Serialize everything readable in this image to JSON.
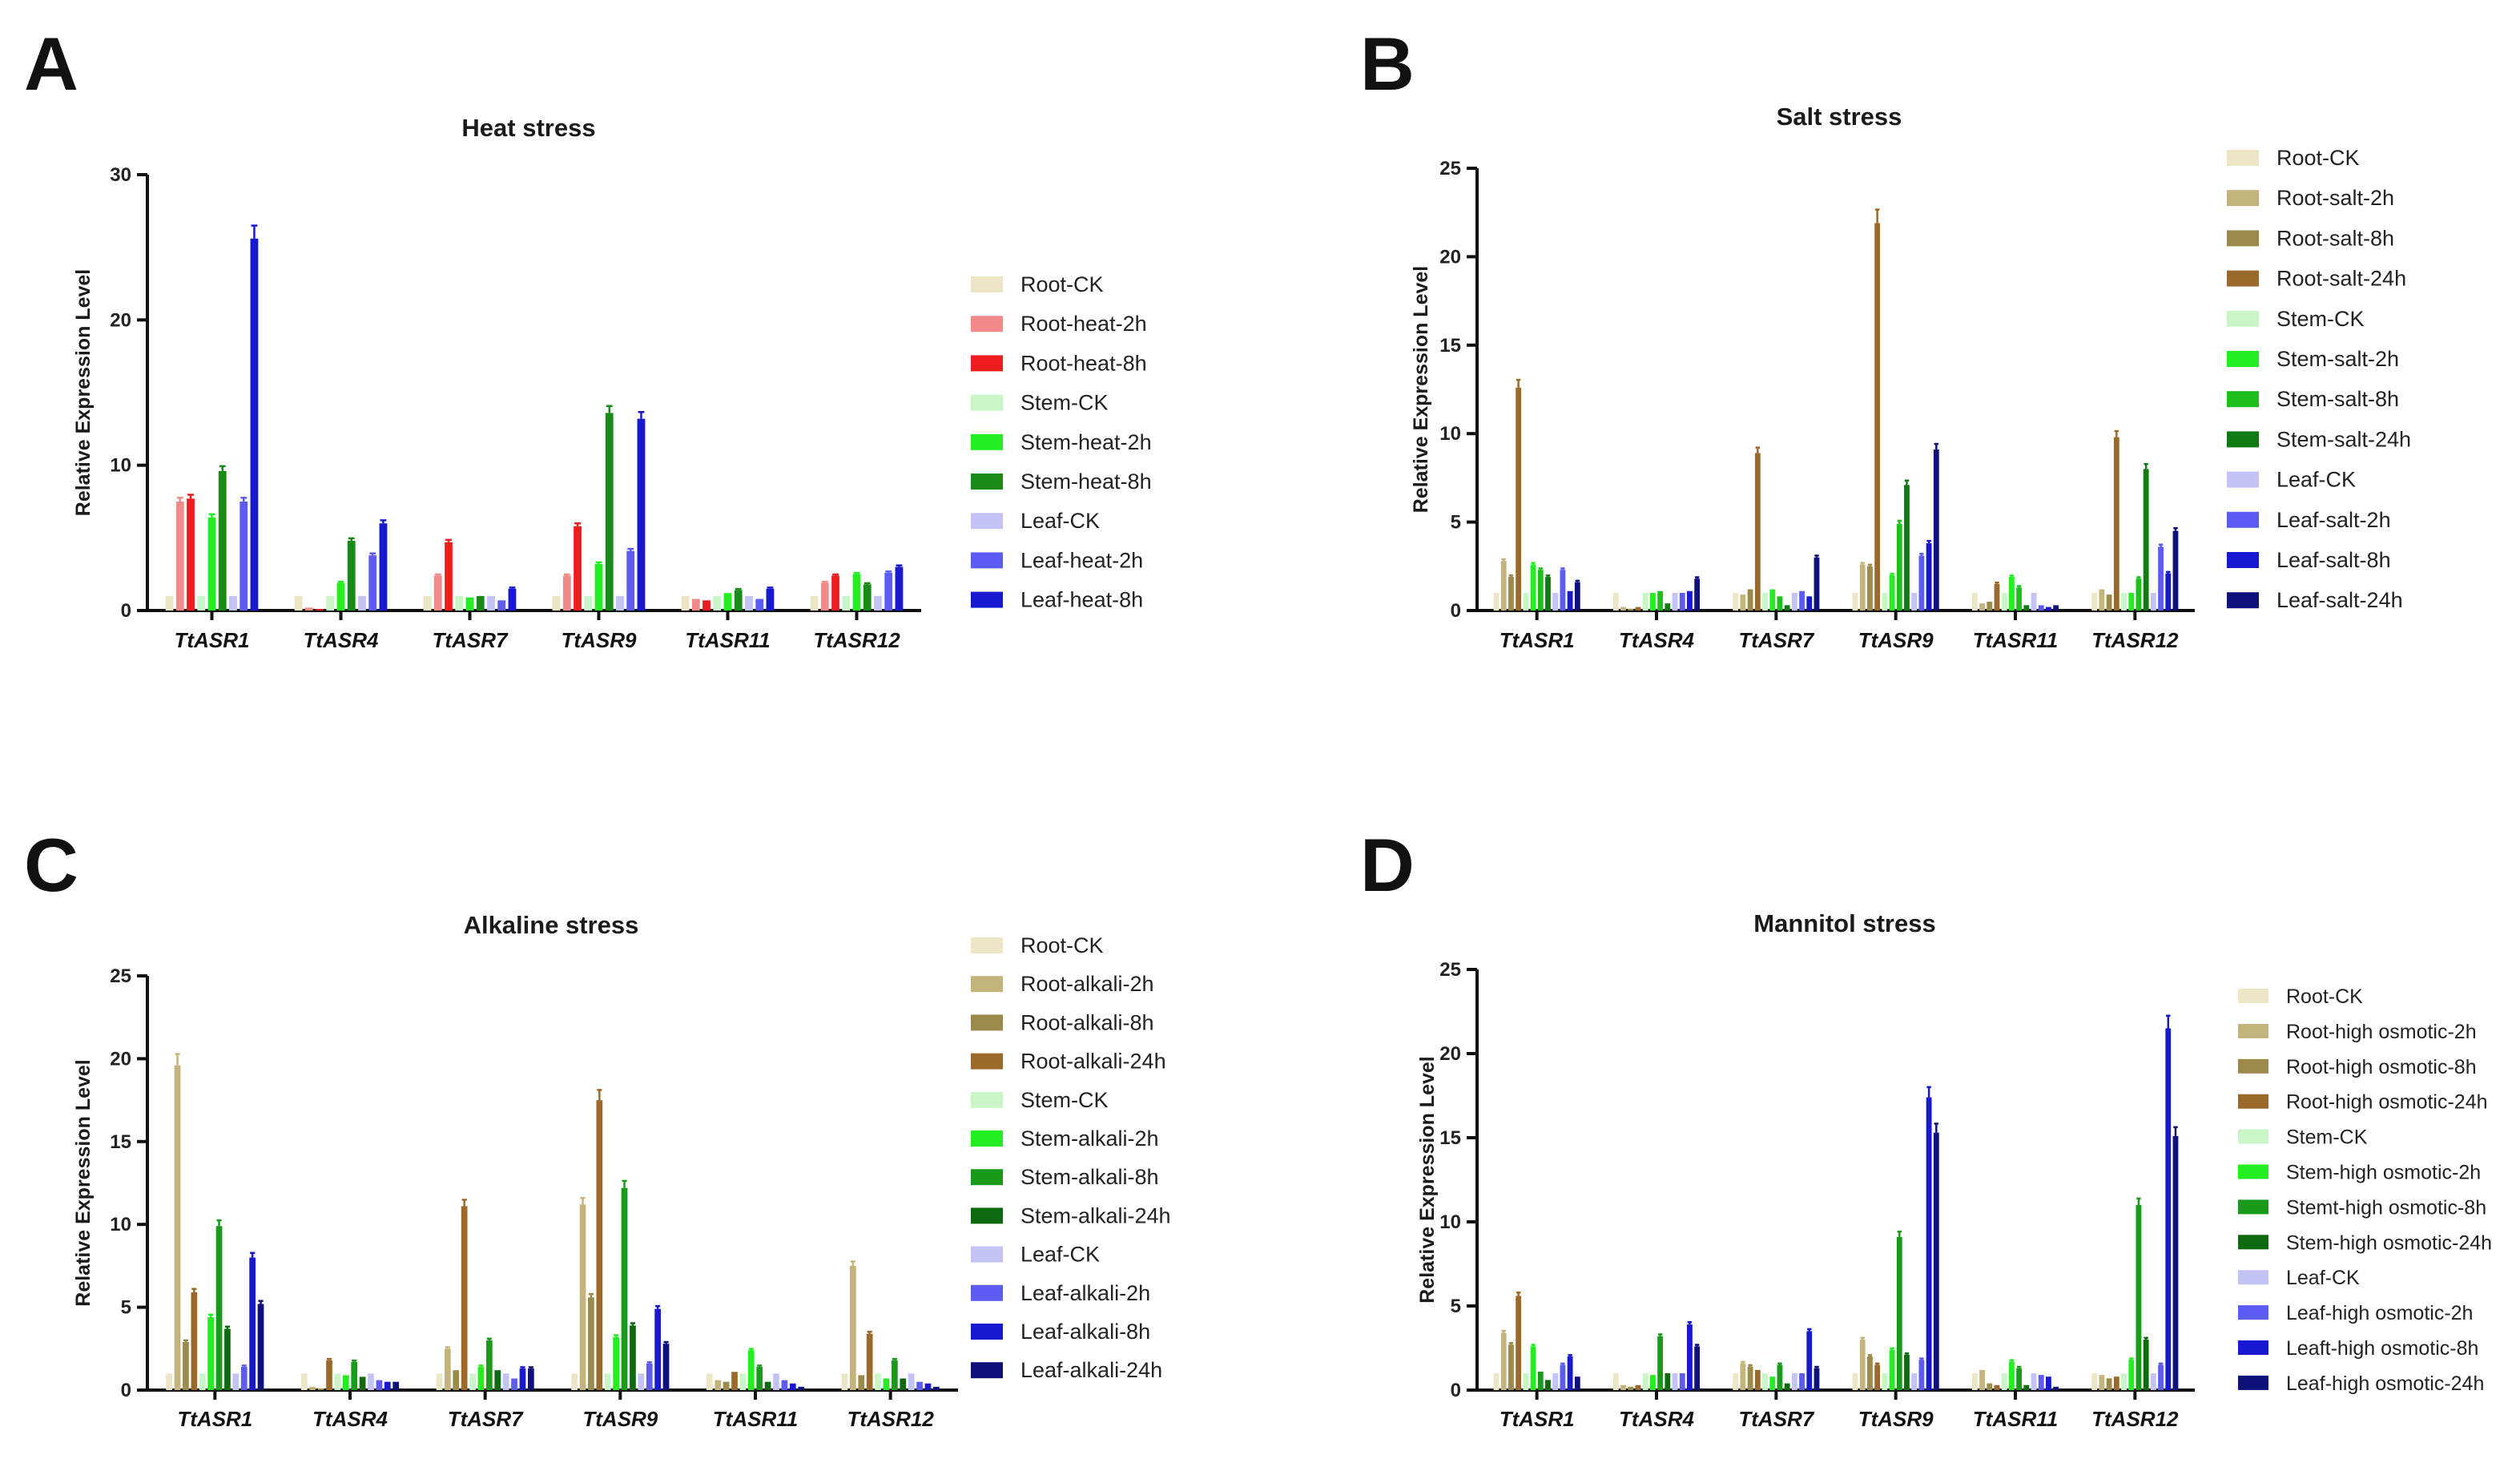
{
  "chart_data": [
    {
      "panel": "A",
      "type": "bar",
      "title": "Heat stress",
      "xlabel": "",
      "ylabel": "Relative Expression Level",
      "ylim": [
        0,
        30
      ],
      "yticks": [
        0,
        10,
        20,
        30
      ],
      "categories": [
        "TtASR1",
        "TtASR4",
        "TtASR7",
        "TtASR9",
        "TtASR11",
        "TtASR12"
      ],
      "legend_position": "right",
      "series": [
        {
          "name": "Root-CK",
          "color": "#ece5c6",
          "values": [
            1.0,
            1.0,
            1.0,
            1.0,
            1.0,
            1.0
          ]
        },
        {
          "name": "Root-heat-2h",
          "color": "#f28a8a",
          "values": [
            7.5,
            0.2,
            2.4,
            2.4,
            0.8,
            1.9
          ]
        },
        {
          "name": "Root-heat-8h",
          "color": "#ee1c1c",
          "values": [
            7.7,
            0.1,
            4.7,
            5.8,
            0.7,
            2.4
          ]
        },
        {
          "name": "Stem-CK",
          "color": "#c9f5c9",
          "values": [
            1.0,
            1.0,
            1.0,
            1.0,
            1.0,
            1.0
          ]
        },
        {
          "name": "Stem-heat-2h",
          "color": "#22ee22",
          "values": [
            6.4,
            1.9,
            0.9,
            3.2,
            1.2,
            2.5
          ]
        },
        {
          "name": "Stem-heat-8h",
          "color": "#188a18",
          "values": [
            9.6,
            4.8,
            1.0,
            13.6,
            1.4,
            1.8
          ]
        },
        {
          "name": "Leaf-CK",
          "color": "#c3c3f5",
          "values": [
            1.0,
            1.0,
            1.0,
            1.0,
            1.0,
            1.0
          ]
        },
        {
          "name": "Leaf-heat-2h",
          "color": "#5c5cf2",
          "values": [
            7.5,
            3.8,
            0.7,
            4.1,
            0.8,
            2.6
          ]
        },
        {
          "name": "Leaf-heat-8h",
          "color": "#1818d0",
          "values": [
            25.6,
            6.0,
            1.5,
            13.2,
            1.5,
            3.0
          ]
        }
      ]
    },
    {
      "panel": "B",
      "type": "bar",
      "title": "Salt stress",
      "xlabel": "",
      "ylabel": "Relative Expression Level",
      "ylim": [
        0,
        25
      ],
      "yticks": [
        0,
        5,
        10,
        15,
        20,
        25
      ],
      "categories": [
        "TtASR1",
        "TtASR4",
        "TtASR7",
        "TtASR9",
        "TtASR11",
        "TtASR12"
      ],
      "legend_position": "right",
      "series": [
        {
          "name": "Root-CK",
          "color": "#ece5c6",
          "values": [
            1.0,
            1.0,
            1.0,
            1.0,
            1.0,
            1.0
          ]
        },
        {
          "name": "Root-salt-2h",
          "color": "#c4b47c",
          "values": [
            2.8,
            0.2,
            0.9,
            2.6,
            0.4,
            1.2
          ]
        },
        {
          "name": "Root-salt-8h",
          "color": "#9c8a4a",
          "values": [
            1.9,
            0.1,
            1.2,
            2.5,
            0.5,
            0.9
          ]
        },
        {
          "name": "Root-salt-24h",
          "color": "#9b6a2a",
          "values": [
            12.6,
            0.2,
            8.9,
            21.9,
            1.5,
            9.8
          ]
        },
        {
          "name": "Stem-CK",
          "color": "#c9f5c9",
          "values": [
            1.0,
            1.0,
            1.0,
            1.0,
            1.0,
            1.0
          ]
        },
        {
          "name": "Stem-salt-2h",
          "color": "#22ee22",
          "values": [
            2.6,
            1.0,
            1.2,
            2.0,
            1.9,
            1.0
          ]
        },
        {
          "name": "Stem-salt-8h",
          "color": "#1cbf1c",
          "values": [
            2.3,
            1.1,
            0.8,
            4.9,
            1.3,
            1.8
          ]
        },
        {
          "name": "Stem-salt-24h",
          "color": "#127a12",
          "values": [
            1.9,
            0.4,
            0.3,
            7.1,
            0.3,
            8.0
          ]
        },
        {
          "name": "Leaf-CK",
          "color": "#c3c3f5",
          "values": [
            1.0,
            1.0,
            1.0,
            1.0,
            1.0,
            1.0
          ]
        },
        {
          "name": "Leaf-salt-2h",
          "color": "#5c5cf2",
          "values": [
            2.3,
            1.0,
            1.1,
            3.1,
            0.3,
            3.6
          ]
        },
        {
          "name": "Leaf-salt-8h",
          "color": "#1818d0",
          "values": [
            1.1,
            1.1,
            0.8,
            3.8,
            0.2,
            2.1
          ]
        },
        {
          "name": "Leaf-salt-24h",
          "color": "#10107a",
          "values": [
            1.6,
            1.8,
            3.0,
            9.1,
            0.3,
            4.5
          ]
        }
      ]
    },
    {
      "panel": "C",
      "type": "bar",
      "title": "Alkaline stress",
      "xlabel": "",
      "ylabel": "Relative Expression Level",
      "ylim": [
        0,
        25
      ],
      "yticks": [
        0,
        5,
        10,
        15,
        20,
        25
      ],
      "categories": [
        "TtASR1",
        "TtASR4",
        "TtASR7",
        "TtASR9",
        "TtASR11",
        "TtASR12"
      ],
      "legend_position": "right",
      "series": [
        {
          "name": "Root-CK",
          "color": "#ece5c6",
          "values": [
            1.0,
            1.0,
            1.0,
            1.0,
            1.0,
            1.0
          ]
        },
        {
          "name": "Root-alkali-2h",
          "color": "#c4b47c",
          "values": [
            19.6,
            0.2,
            2.5,
            11.2,
            0.6,
            7.5
          ]
        },
        {
          "name": "Root-alkali-8h",
          "color": "#9c8a4a",
          "values": [
            2.9,
            0.1,
            1.2,
            5.6,
            0.5,
            0.9
          ]
        },
        {
          "name": "Root-alkali-24h",
          "color": "#9b6a2a",
          "values": [
            5.9,
            1.8,
            11.1,
            17.5,
            1.1,
            3.4
          ]
        },
        {
          "name": "Stem-CK",
          "color": "#c9f5c9",
          "values": [
            1.0,
            1.0,
            1.0,
            1.0,
            1.0,
            1.0
          ]
        },
        {
          "name": "Stem-alkali-2h",
          "color": "#22ee22",
          "values": [
            4.4,
            0.9,
            1.4,
            3.2,
            2.4,
            0.7
          ]
        },
        {
          "name": "Stem-alkali-8h",
          "color": "#1a9a1a",
          "values": [
            9.9,
            1.7,
            3.0,
            12.2,
            1.4,
            1.8
          ]
        },
        {
          "name": "Stem-alkali-24h",
          "color": "#0e6a0e",
          "values": [
            3.7,
            0.8,
            1.2,
            3.9,
            0.5,
            0.7
          ]
        },
        {
          "name": "Leaf-CK",
          "color": "#c3c3f5",
          "values": [
            1.0,
            1.0,
            1.0,
            1.0,
            1.0,
            1.0
          ]
        },
        {
          "name": "Leaf-alkali-2h",
          "color": "#5c5cf2",
          "values": [
            1.4,
            0.6,
            0.7,
            1.6,
            0.6,
            0.5
          ]
        },
        {
          "name": "Leaf-alkali-8h",
          "color": "#1818d0",
          "values": [
            8.0,
            0.5,
            1.3,
            4.9,
            0.4,
            0.4
          ]
        },
        {
          "name": "Leaf-alkali-24h",
          "color": "#10107a",
          "values": [
            5.2,
            0.5,
            1.3,
            2.8,
            0.2,
            0.2
          ]
        }
      ]
    },
    {
      "panel": "D",
      "type": "bar",
      "title": "Mannitol stress",
      "xlabel": "",
      "ylabel": "Relative Expression Level",
      "ylim": [
        0,
        25
      ],
      "yticks": [
        0,
        5,
        10,
        15,
        20,
        25
      ],
      "categories": [
        "TtASR1",
        "TtASR4",
        "TtASR7",
        "TtASR9",
        "TtASR11",
        "TtASR12"
      ],
      "legend_position": "right",
      "series": [
        {
          "name": "Root-CK",
          "color": "#ece5c6",
          "values": [
            1.0,
            1.0,
            1.0,
            1.0,
            1.0,
            1.0
          ]
        },
        {
          "name": "Root-high osmotic-2h",
          "color": "#c4b47c",
          "values": [
            3.4,
            0.3,
            1.6,
            3.0,
            1.2,
            0.9
          ]
        },
        {
          "name": "Root-high osmotic-8h",
          "color": "#9c8a4a",
          "values": [
            2.7,
            0.2,
            1.4,
            2.0,
            0.4,
            0.7
          ]
        },
        {
          "name": "Root-high osmotic-24h",
          "color": "#9b6a2a",
          "values": [
            5.6,
            0.3,
            1.2,
            1.5,
            0.3,
            0.8
          ]
        },
        {
          "name": "Stem-CK",
          "color": "#c9f5c9",
          "values": [
            1.0,
            1.0,
            1.0,
            1.0,
            1.0,
            1.0
          ]
        },
        {
          "name": "Stem-high osmotic-2h",
          "color": "#22ee22",
          "values": [
            2.6,
            0.9,
            0.8,
            2.4,
            1.7,
            1.8
          ]
        },
        {
          "name": "Stemt-high osmotic-8h",
          "color": "#1a9a1a",
          "values": [
            1.1,
            3.2,
            1.5,
            9.1,
            1.3,
            11.0
          ]
        },
        {
          "name": "Stem-high osmotic-24h",
          "color": "#0e6a0e",
          "values": [
            0.6,
            1.0,
            0.4,
            2.1,
            0.3,
            3.0
          ]
        },
        {
          "name": "Leaf-CK",
          "color": "#c3c3f5",
          "values": [
            1.0,
            1.0,
            1.0,
            1.0,
            1.0,
            1.0
          ]
        },
        {
          "name": "Leaf-high osmotic-2h",
          "color": "#5c5cf2",
          "values": [
            1.5,
            1.0,
            1.0,
            1.8,
            0.9,
            1.5
          ]
        },
        {
          "name": "Leaft-high osmotic-8h",
          "color": "#1818d0",
          "values": [
            2.0,
            3.9,
            3.5,
            17.4,
            0.8,
            21.5
          ]
        },
        {
          "name": "Leaf-high osmotic-24h",
          "color": "#10107a",
          "values": [
            0.8,
            2.6,
            1.3,
            15.3,
            0.2,
            15.1
          ]
        }
      ]
    }
  ]
}
